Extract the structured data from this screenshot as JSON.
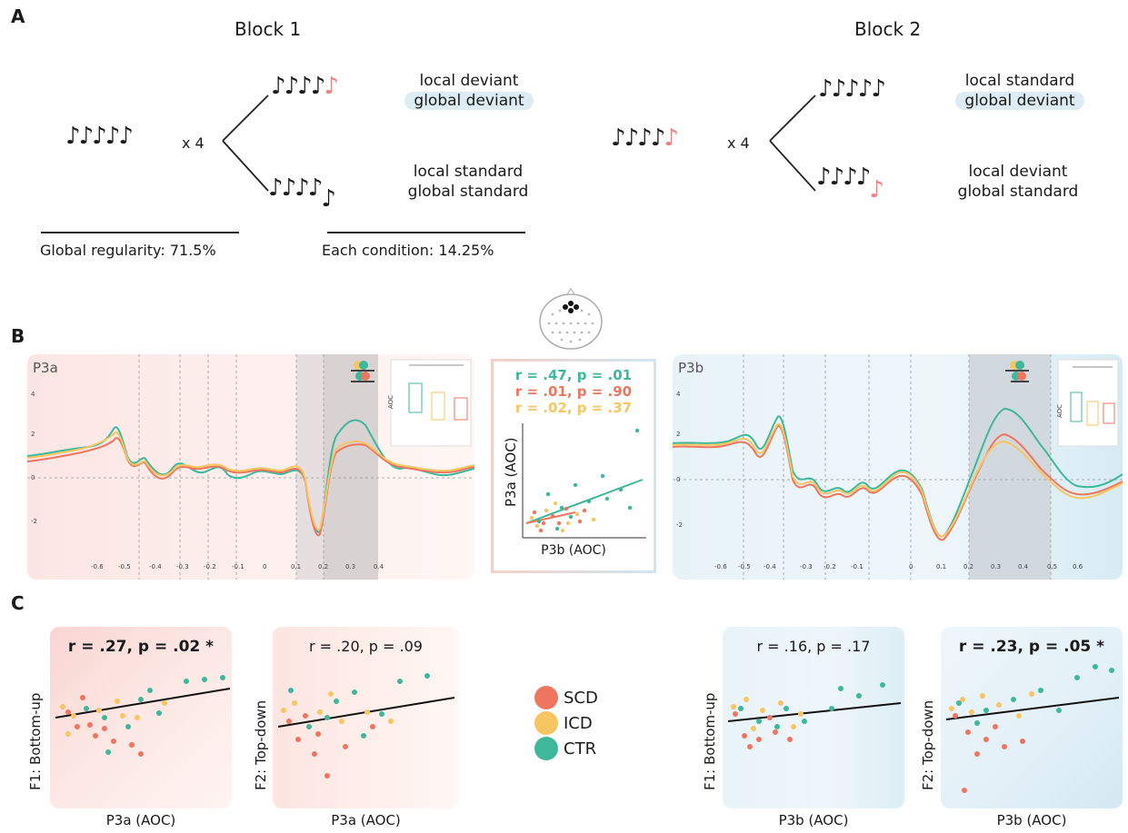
{
  "panel_labels": {
    "a": "A",
    "b": "B",
    "c": "C"
  },
  "sectionA": {
    "block1": {
      "title": "Block 1",
      "repeat": "x 4",
      "top": {
        "line1": "local deviant",
        "line2": "global deviant"
      },
      "bottom": {
        "line1": "local standard",
        "line2": "global standard"
      },
      "footer_left": "Global regularity: 71.5%",
      "footer_right": "Each condition: 14.25%"
    },
    "block2": {
      "title": "Block 2",
      "repeat": "x 4",
      "top": {
        "line1": "local standard",
        "line2": "global deviant"
      },
      "bottom": {
        "line1": "local deviant",
        "line2": "global standard"
      }
    }
  },
  "sectionB": {
    "left_title": "P3a",
    "right_title": "P3b",
    "center": {
      "stat_ctr": "r = .47, p = .01",
      "stat_scd": "r = .01, p = .90",
      "stat_icd": "r = .02, p = .37",
      "ylabel": "P3a (AOC)",
      "xlabel": "P3b (AOC)"
    },
    "inset_ylabel": "AOC"
  },
  "sectionC": {
    "p1": {
      "stat": "r = .27, p = .02 *",
      "ylabel": "F1: Bottom-up",
      "xlabel": "P3a (AOC)"
    },
    "p2": {
      "stat": "r = .20, p = .09",
      "ylabel": "F2: Top-down",
      "xlabel": "P3a (AOC)"
    },
    "p3": {
      "stat": "r = .16, p = .17",
      "ylabel": "F1: Bottom-up",
      "xlabel": "P3b (AOC)"
    },
    "p4": {
      "stat": "r = .23, p = .05 *",
      "ylabel": "F2: Top-down",
      "xlabel": "P3b (AOC)"
    },
    "legend": [
      {
        "label": "SCD",
        "color": "#ee7660"
      },
      {
        "label": "ICD",
        "color": "#f7c562"
      },
      {
        "label": "CTR",
        "color": "#3db89a"
      }
    ]
  },
  "colors": {
    "scd": "#ee7660",
    "icd": "#f7c562",
    "ctr": "#3db89a",
    "deviant_note": "#f0807f"
  },
  "icons": {
    "note": "eighth-note-icon",
    "head": "eeg-head-icon"
  }
}
